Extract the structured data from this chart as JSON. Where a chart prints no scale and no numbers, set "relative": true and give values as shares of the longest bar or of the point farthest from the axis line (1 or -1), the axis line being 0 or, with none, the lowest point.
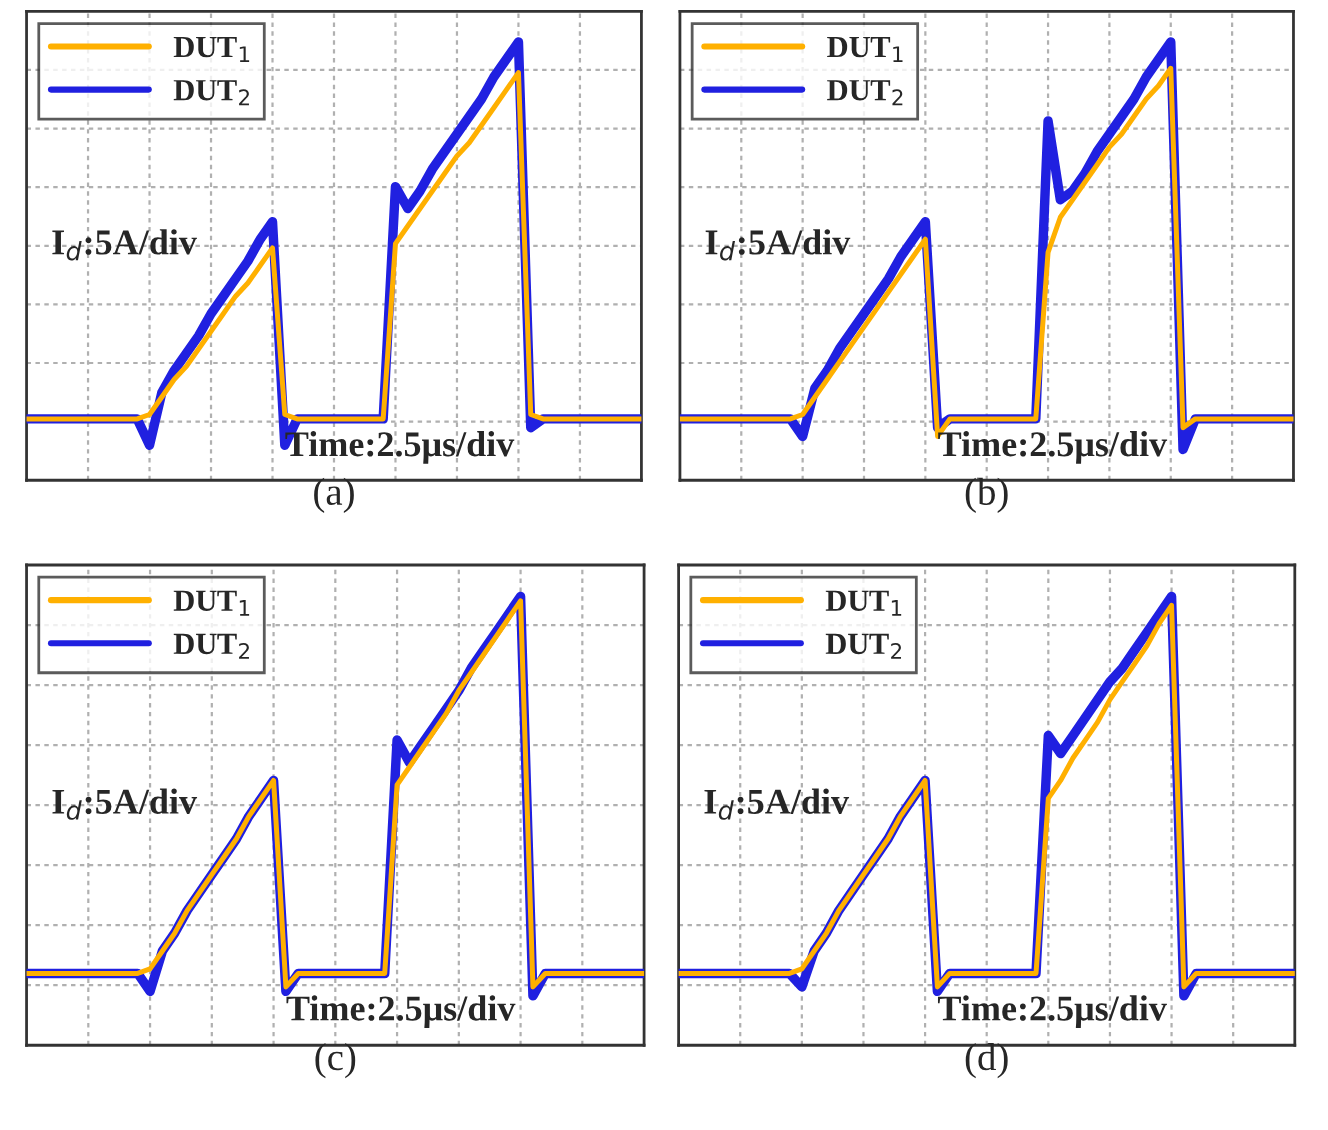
{
  "chart_data": [
    {
      "type": "line",
      "title": "(a)",
      "relative": true,
      "categories": [
        null,
        null,
        null,
        null,
        null,
        null,
        null,
        null,
        null,
        null,
        null,
        null,
        null,
        null,
        null,
        null,
        null,
        null,
        null,
        null,
        null,
        null,
        null,
        null,
        null,
        null,
        null,
        null,
        null,
        null,
        null,
        null,
        null,
        null,
        null,
        null,
        null,
        null,
        null,
        null,
        null,
        null,
        null,
        null,
        null,
        null,
        null,
        null,
        null,
        null,
        null
      ],
      "grid": true,
      "legend": "top left",
      "line_style": "solid",
      "annotations": [
        "I$_{d}$:5A/div",
        "Time:2.5μs/div"
      ],
      "series": [
        {
          "name": "DUT$_{1}$",
          "color": "#ffb000",
          "values": [
            0.14,
            0.14,
            0.14,
            0.14,
            0.14,
            0.14,
            0.14,
            0.14,
            0.14,
            0.14,
            0.15,
            0.19,
            0.23,
            0.26,
            0.3,
            0.34,
            0.38,
            0.42,
            0.45,
            0.49,
            0.53,
            0.15,
            0.14,
            0.14,
            0.14,
            0.14,
            0.14,
            0.14,
            0.14,
            0.14,
            0.54,
            0.58,
            0.62,
            0.66,
            0.7,
            0.74,
            0.77,
            0.81,
            0.85,
            0.89,
            0.93,
            0.15,
            0.14,
            0.14,
            0.14,
            0.14,
            0.14,
            0.14,
            0.14,
            0.14,
            0.14
          ]
        },
        {
          "name": "DUT$_{2}$",
          "color": "#2020e0",
          "values": [
            0.14,
            0.14,
            0.14,
            0.14,
            0.14,
            0.14,
            0.14,
            0.14,
            0.14,
            0.14,
            0.08,
            0.2,
            0.25,
            0.29,
            0.33,
            0.38,
            0.42,
            0.46,
            0.5,
            0.55,
            0.59,
            0.08,
            0.14,
            0.14,
            0.14,
            0.14,
            0.14,
            0.14,
            0.14,
            0.14,
            0.67,
            0.62,
            0.66,
            0.71,
            0.75,
            0.79,
            0.83,
            0.87,
            0.92,
            0.96,
            1.0,
            0.12,
            0.14,
            0.14,
            0.14,
            0.14,
            0.14,
            0.14,
            0.14,
            0.14,
            0.14
          ]
        }
      ]
    },
    {
      "type": "line",
      "title": "(b)",
      "relative": true,
      "categories": [
        null,
        null,
        null,
        null,
        null,
        null,
        null,
        null,
        null,
        null,
        null,
        null,
        null,
        null,
        null,
        null,
        null,
        null,
        null,
        null,
        null,
        null,
        null,
        null,
        null,
        null,
        null,
        null,
        null,
        null,
        null,
        null,
        null,
        null,
        null,
        null,
        null,
        null,
        null,
        null,
        null,
        null,
        null,
        null,
        null,
        null,
        null,
        null,
        null,
        null,
        null
      ],
      "grid": true,
      "legend": "top left",
      "line_style": "solid",
      "annotations": [
        "I$_{d}$:5A/div",
        "Time:2.5μs/div"
      ],
      "series": [
        {
          "name": "DUT$_{1}$",
          "color": "#ffb000",
          "values": [
            0.14,
            0.14,
            0.14,
            0.14,
            0.14,
            0.14,
            0.14,
            0.14,
            0.14,
            0.14,
            0.15,
            0.19,
            0.23,
            0.27,
            0.31,
            0.35,
            0.39,
            0.43,
            0.47,
            0.51,
            0.55,
            0.1,
            0.14,
            0.14,
            0.14,
            0.14,
            0.14,
            0.14,
            0.14,
            0.14,
            0.52,
            0.6,
            0.64,
            0.68,
            0.72,
            0.76,
            0.79,
            0.83,
            0.87,
            0.9,
            0.94,
            0.12,
            0.14,
            0.14,
            0.14,
            0.14,
            0.14,
            0.14,
            0.14,
            0.14,
            0.14
          ]
        },
        {
          "name": "DUT$_{2}$",
          "color": "#2020e0",
          "values": [
            0.14,
            0.14,
            0.14,
            0.14,
            0.14,
            0.14,
            0.14,
            0.14,
            0.14,
            0.14,
            0.1,
            0.21,
            0.25,
            0.3,
            0.34,
            0.38,
            0.42,
            0.46,
            0.51,
            0.55,
            0.59,
            0.12,
            0.14,
            0.14,
            0.14,
            0.14,
            0.14,
            0.14,
            0.14,
            0.14,
            0.82,
            0.64,
            0.66,
            0.7,
            0.75,
            0.79,
            0.83,
            0.87,
            0.92,
            0.96,
            1.0,
            0.07,
            0.14,
            0.14,
            0.14,
            0.14,
            0.14,
            0.14,
            0.14,
            0.14,
            0.14
          ]
        }
      ]
    },
    {
      "type": "line",
      "title": "(c)",
      "relative": true,
      "categories": [
        null,
        null,
        null,
        null,
        null,
        null,
        null,
        null,
        null,
        null,
        null,
        null,
        null,
        null,
        null,
        null,
        null,
        null,
        null,
        null,
        null,
        null,
        null,
        null,
        null,
        null,
        null,
        null,
        null,
        null,
        null,
        null,
        null,
        null,
        null,
        null,
        null,
        null,
        null,
        null,
        null,
        null,
        null,
        null,
        null,
        null,
        null,
        null,
        null,
        null,
        null
      ],
      "grid": true,
      "legend": "top left",
      "line_style": "solid",
      "annotations": [
        "I$_{d}$:5A/div",
        "Time:2.5μs/div"
      ],
      "series": [
        {
          "name": "DUT$_{1}$",
          "color": "#ffb000",
          "values": [
            0.16,
            0.16,
            0.16,
            0.16,
            0.16,
            0.16,
            0.16,
            0.16,
            0.16,
            0.16,
            0.17,
            0.21,
            0.25,
            0.3,
            0.34,
            0.38,
            0.42,
            0.46,
            0.51,
            0.55,
            0.59,
            0.13,
            0.16,
            0.16,
            0.16,
            0.16,
            0.16,
            0.16,
            0.16,
            0.16,
            0.58,
            0.62,
            0.66,
            0.7,
            0.74,
            0.79,
            0.83,
            0.87,
            0.91,
            0.95,
            0.99,
            0.13,
            0.16,
            0.16,
            0.16,
            0.16,
            0.16,
            0.16,
            0.16,
            0.16,
            0.16
          ]
        },
        {
          "name": "DUT$_{2}$",
          "color": "#2020e0",
          "values": [
            0.16,
            0.16,
            0.16,
            0.16,
            0.16,
            0.16,
            0.16,
            0.16,
            0.16,
            0.16,
            0.12,
            0.21,
            0.25,
            0.3,
            0.34,
            0.38,
            0.42,
            0.46,
            0.51,
            0.55,
            0.59,
            0.12,
            0.16,
            0.16,
            0.16,
            0.16,
            0.16,
            0.16,
            0.16,
            0.16,
            0.68,
            0.63,
            0.67,
            0.71,
            0.75,
            0.79,
            0.84,
            0.88,
            0.92,
            0.96,
            1.0,
            0.11,
            0.16,
            0.16,
            0.16,
            0.16,
            0.16,
            0.16,
            0.16,
            0.16,
            0.16
          ]
        }
      ]
    },
    {
      "type": "line",
      "title": "(d)",
      "relative": true,
      "categories": [
        null,
        null,
        null,
        null,
        null,
        null,
        null,
        null,
        null,
        null,
        null,
        null,
        null,
        null,
        null,
        null,
        null,
        null,
        null,
        null,
        null,
        null,
        null,
        null,
        null,
        null,
        null,
        null,
        null,
        null,
        null,
        null,
        null,
        null,
        null,
        null,
        null,
        null,
        null,
        null,
        null,
        null,
        null,
        null,
        null,
        null,
        null,
        null,
        null,
        null,
        null
      ],
      "grid": true,
      "legend": "top left",
      "line_style": "solid",
      "annotations": [
        "I$_{d}$:5A/div",
        "Time:2.5μs/div"
      ],
      "series": [
        {
          "name": "DUT$_{1}$",
          "color": "#ffb000",
          "values": [
            0.16,
            0.16,
            0.16,
            0.16,
            0.16,
            0.16,
            0.16,
            0.16,
            0.16,
            0.16,
            0.17,
            0.21,
            0.25,
            0.3,
            0.34,
            0.38,
            0.42,
            0.46,
            0.51,
            0.55,
            0.59,
            0.13,
            0.16,
            0.16,
            0.16,
            0.16,
            0.16,
            0.16,
            0.16,
            0.16,
            0.55,
            0.59,
            0.64,
            0.68,
            0.72,
            0.77,
            0.81,
            0.85,
            0.89,
            0.94,
            0.98,
            0.13,
            0.16,
            0.16,
            0.16,
            0.16,
            0.16,
            0.16,
            0.16,
            0.16,
            0.16
          ]
        },
        {
          "name": "DUT$_{2}$",
          "color": "#2020e0",
          "values": [
            0.16,
            0.16,
            0.16,
            0.16,
            0.16,
            0.16,
            0.16,
            0.16,
            0.16,
            0.16,
            0.13,
            0.21,
            0.25,
            0.3,
            0.34,
            0.38,
            0.42,
            0.46,
            0.51,
            0.55,
            0.59,
            0.12,
            0.16,
            0.16,
            0.16,
            0.16,
            0.16,
            0.16,
            0.16,
            0.16,
            0.69,
            0.65,
            0.69,
            0.73,
            0.77,
            0.81,
            0.84,
            0.88,
            0.92,
            0.96,
            1.0,
            0.11,
            0.16,
            0.16,
            0.16,
            0.16,
            0.16,
            0.16,
            0.16,
            0.16,
            0.16
          ]
        }
      ]
    }
  ]
}
